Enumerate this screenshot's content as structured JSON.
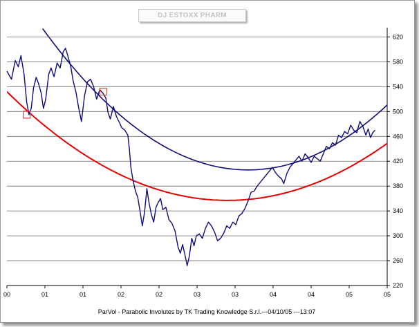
{
  "chart_data": {
    "type": "line",
    "title": "DJ ESTOXX PHARM",
    "footer": "ParVol - Parabolic Involutes by TK Trading Knowledge S.r.l.---04/10/05 ---13:07",
    "xlabel": "",
    "ylabel": "",
    "x_tick_labels": [
      "00",
      "01",
      "01",
      "02",
      "02",
      "03",
      "03",
      "04",
      "04",
      "05",
      "05"
    ],
    "y_ticks": [
      220,
      260,
      300,
      340,
      380,
      420,
      460,
      500,
      540,
      580,
      620
    ],
    "ylim": [
      220,
      635
    ],
    "xlim": [
      0,
      1
    ],
    "grid": "horizontal",
    "legend": "none",
    "colors": {
      "price": "#0c0c7a",
      "upper_curve": "#0c0c7a",
      "lower_curve": "#e60000",
      "marker": "#ee3a3a"
    },
    "series": [
      {
        "role": "price",
        "points": [
          [
            0.0,
            565
          ],
          [
            0.012,
            552
          ],
          [
            0.022,
            582
          ],
          [
            0.03,
            572
          ],
          [
            0.037,
            590
          ],
          [
            0.045,
            560
          ],
          [
            0.052,
            515
          ],
          [
            0.058,
            495
          ],
          [
            0.064,
            505
          ],
          [
            0.07,
            538
          ],
          [
            0.077,
            555
          ],
          [
            0.083,
            545
          ],
          [
            0.09,
            530
          ],
          [
            0.096,
            505
          ],
          [
            0.102,
            520
          ],
          [
            0.11,
            560
          ],
          [
            0.116,
            570
          ],
          [
            0.124,
            556
          ],
          [
            0.132,
            578
          ],
          [
            0.14,
            570
          ],
          [
            0.148,
            596
          ],
          [
            0.154,
            602
          ],
          [
            0.16,
            590
          ],
          [
            0.168,
            572
          ],
          [
            0.174,
            550
          ],
          [
            0.182,
            530
          ],
          [
            0.188,
            508
          ],
          [
            0.196,
            484
          ],
          [
            0.204,
            525
          ],
          [
            0.212,
            548
          ],
          [
            0.22,
            552
          ],
          [
            0.228,
            540
          ],
          [
            0.236,
            520
          ],
          [
            0.244,
            535
          ],
          [
            0.252,
            530
          ],
          [
            0.26,
            522
          ],
          [
            0.266,
            498
          ],
          [
            0.272,
            488
          ],
          [
            0.28,
            508
          ],
          [
            0.288,
            492
          ],
          [
            0.296,
            482
          ],
          [
            0.302,
            474
          ],
          [
            0.31,
            470
          ],
          [
            0.318,
            462
          ],
          [
            0.322,
            440
          ],
          [
            0.326,
            410
          ],
          [
            0.332,
            388
          ],
          [
            0.338,
            372
          ],
          [
            0.344,
            362
          ],
          [
            0.35,
            340
          ],
          [
            0.356,
            316
          ],
          [
            0.362,
            338
          ],
          [
            0.368,
            376
          ],
          [
            0.374,
            352
          ],
          [
            0.38,
            334
          ],
          [
            0.386,
            322
          ],
          [
            0.392,
            346
          ],
          [
            0.398,
            354
          ],
          [
            0.404,
            360
          ],
          [
            0.41,
            342
          ],
          [
            0.418,
            346
          ],
          [
            0.426,
            326
          ],
          [
            0.434,
            320
          ],
          [
            0.442,
            308
          ],
          [
            0.45,
            282
          ],
          [
            0.456,
            272
          ],
          [
            0.462,
            286
          ],
          [
            0.468,
            270
          ],
          [
            0.474,
            252
          ],
          [
            0.48,
            268
          ],
          [
            0.486,
            296
          ],
          [
            0.492,
            284
          ],
          [
            0.498,
            300
          ],
          [
            0.506,
            303
          ],
          [
            0.514,
            296
          ],
          [
            0.522,
            312
          ],
          [
            0.53,
            322
          ],
          [
            0.538,
            316
          ],
          [
            0.546,
            306
          ],
          [
            0.554,
            292
          ],
          [
            0.562,
            296
          ],
          [
            0.57,
            304
          ],
          [
            0.578,
            316
          ],
          [
            0.586,
            312
          ],
          [
            0.594,
            322
          ],
          [
            0.602,
            318
          ],
          [
            0.61,
            332
          ],
          [
            0.618,
            336
          ],
          [
            0.626,
            344
          ],
          [
            0.634,
            356
          ],
          [
            0.642,
            370
          ],
          [
            0.65,
            372
          ],
          [
            0.658,
            380
          ],
          [
            0.666,
            386
          ],
          [
            0.674,
            392
          ],
          [
            0.682,
            398
          ],
          [
            0.69,
            404
          ],
          [
            0.698,
            410
          ],
          [
            0.706,
            402
          ],
          [
            0.714,
            396
          ],
          [
            0.722,
            392
          ],
          [
            0.728,
            384
          ],
          [
            0.736,
            400
          ],
          [
            0.744,
            410
          ],
          [
            0.752,
            416
          ],
          [
            0.76,
            422
          ],
          [
            0.768,
            428
          ],
          [
            0.776,
            420
          ],
          [
            0.784,
            432
          ],
          [
            0.792,
            426
          ],
          [
            0.8,
            418
          ],
          [
            0.808,
            428
          ],
          [
            0.816,
            424
          ],
          [
            0.824,
            420
          ],
          [
            0.832,
            432
          ],
          [
            0.84,
            444
          ],
          [
            0.848,
            440
          ],
          [
            0.856,
            450
          ],
          [
            0.864,
            446
          ],
          [
            0.872,
            462
          ],
          [
            0.88,
            458
          ],
          [
            0.888,
            468
          ],
          [
            0.896,
            464
          ],
          [
            0.904,
            478
          ],
          [
            0.912,
            470
          ],
          [
            0.92,
            466
          ],
          [
            0.928,
            484
          ],
          [
            0.936,
            476
          ],
          [
            0.944,
            462
          ],
          [
            0.95,
            472
          ],
          [
            0.956,
            458
          ],
          [
            0.962,
            466
          ],
          [
            0.968,
            470
          ]
        ]
      },
      {
        "role": "upper_curve",
        "a": 780,
        "x_vertex": 0.634,
        "y_vertex": 406,
        "x_start": 0.094,
        "x_end": 1.0
      },
      {
        "role": "lower_curve",
        "a": 520,
        "x_vertex": 0.58,
        "y_vertex": 357,
        "x_start": 0.0,
        "x_end": 1.0
      }
    ],
    "markers": [
      [
        0.052,
        495
      ],
      [
        0.253,
        532
      ]
    ]
  }
}
